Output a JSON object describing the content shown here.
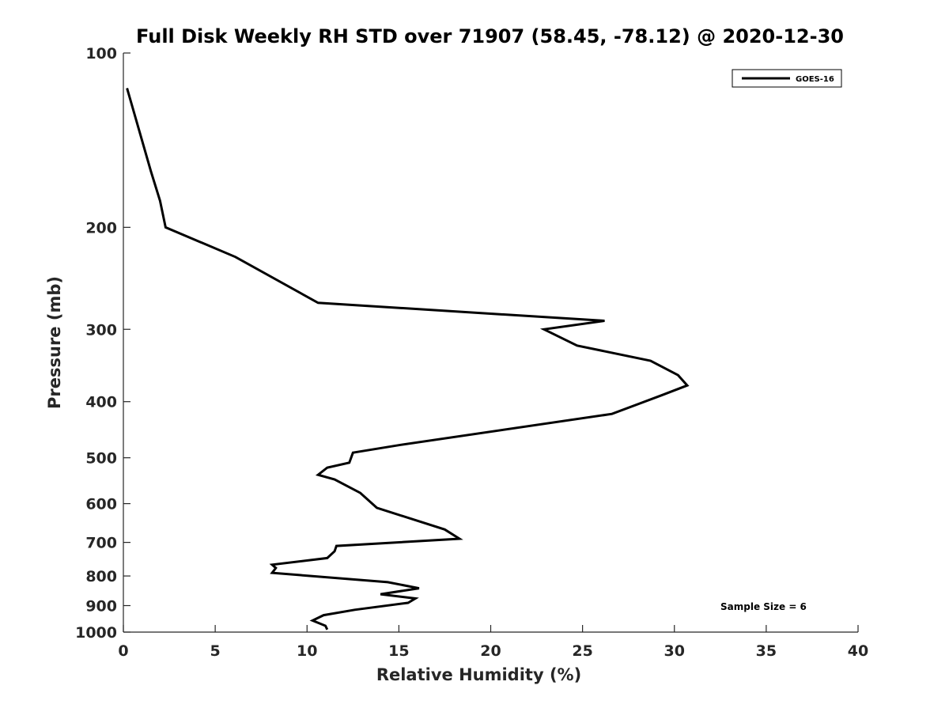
{
  "chart_data": {
    "type": "line",
    "title": "Full Disk Weekly RH STD over 71907 (58.45, -78.12) @ 2020-12-30",
    "xlabel": "Relative Humidity (%)",
    "ylabel": "Pressure (mb)",
    "xlim": [
      0,
      40
    ],
    "ylim": [
      100,
      1000
    ],
    "yscale": "log",
    "yreversed": true,
    "xticks": [
      0,
      5,
      10,
      15,
      20,
      25,
      30,
      35,
      40
    ],
    "yticks": [
      100,
      200,
      300,
      400,
      500,
      600,
      700,
      800,
      900,
      1000
    ],
    "grid": false,
    "legend_position": "top-right",
    "series": [
      {
        "name": "GOES-16",
        "color": "#000000",
        "x": [
          0.2,
          1.5,
          2.0,
          2.3,
          6.1,
          10.6,
          26.2,
          22.9,
          24.7,
          28.7,
          30.2,
          30.7,
          29.3,
          26.6,
          15.1,
          12.5,
          12.3,
          11.1,
          10.6,
          11.5,
          12.9,
          13.8,
          17.5,
          18.3,
          11.6,
          11.5,
          11.1,
          8.1,
          8.3,
          8.1,
          14.4,
          16.1,
          14.0,
          15.9,
          15.5,
          12.6,
          10.9,
          10.3,
          11.0,
          11.1
        ],
        "y": [
          115,
          160,
          180,
          200,
          225,
          270,
          290,
          300,
          320,
          340,
          360,
          375,
          390,
          420,
          475,
          490,
          510,
          520,
          535,
          545,
          575,
          610,
          665,
          690,
          710,
          725,
          745,
          765,
          775,
          790,
          820,
          840,
          860,
          875,
          890,
          915,
          935,
          955,
          975,
          990
        ]
      }
    ],
    "annotations": [
      {
        "text": "Sample Size = 6"
      }
    ]
  }
}
